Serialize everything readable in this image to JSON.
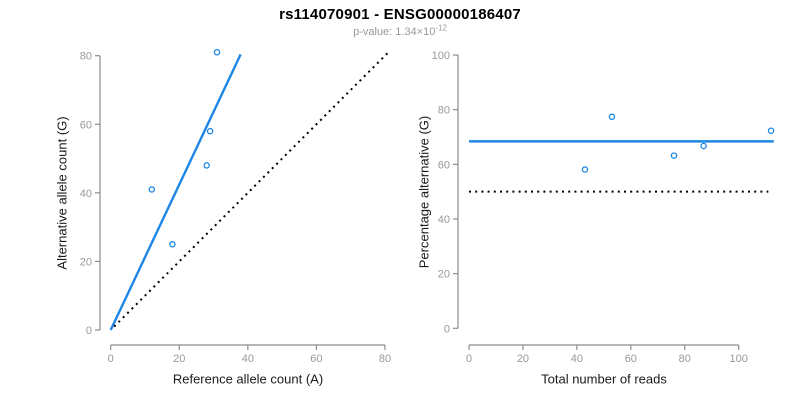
{
  "title": "rs114070901 - ENSG00000186407",
  "subtitle": {
    "text": "p-value: 1.34×10",
    "exponent": "-12"
  },
  "colors": {
    "accent_blue": "#1E87E5",
    "axis_gray": "#8C8C8C",
    "tick_label_gray": "#999999",
    "label_black": "#1a1a1a",
    "identity_black": "#000000"
  },
  "chart_data": [
    {
      "type": "scatter",
      "name": "allele-counts-plot",
      "xlabel": "Reference allele count (A)",
      "ylabel": "Alternative allele count (G)",
      "xlim": [
        0,
        80
      ],
      "ylim": [
        0,
        80
      ],
      "xticks": [
        0,
        20,
        40,
        60,
        80
      ],
      "yticks": [
        0,
        20,
        40,
        60,
        80
      ],
      "grid": false,
      "points": [
        [
          12,
          41
        ],
        [
          18,
          25
        ],
        [
          28,
          48
        ],
        [
          29,
          58
        ],
        [
          31,
          81
        ]
      ],
      "lines": [
        {
          "name": "regression-line",
          "style": "solid",
          "color": "blue",
          "x1": 0,
          "y1": 0,
          "x2": 37.9,
          "y2": 80.4
        },
        {
          "name": "identity-line",
          "style": "dotted",
          "color": "black",
          "x1": 1,
          "y1": 1,
          "x2": 81,
          "y2": 81
        }
      ]
    },
    {
      "type": "scatter",
      "name": "percentage-alternative-plot",
      "xlabel": "Total number of reads",
      "ylabel": "Percentage alternative (G)",
      "xlim": [
        0,
        113
      ],
      "ylim": [
        0,
        100
      ],
      "xticks": [
        0,
        20,
        40,
        60,
        80,
        100
      ],
      "yticks": [
        0,
        20,
        40,
        60,
        80,
        100
      ],
      "grid": false,
      "points": [
        [
          43,
          58.1
        ],
        [
          53,
          77.4
        ],
        [
          76,
          63.2
        ],
        [
          87,
          66.7
        ],
        [
          112,
          72.3
        ]
      ],
      "lines": [
        {
          "name": "mean-percentage-line",
          "style": "solid",
          "color": "blue",
          "x1": 0,
          "y1": 68.4,
          "x2": 113,
          "y2": 68.4
        },
        {
          "name": "fifty-percent-line",
          "style": "dotted",
          "color": "black",
          "x1": 0,
          "y1": 50,
          "x2": 111,
          "y2": 50
        }
      ]
    }
  ]
}
